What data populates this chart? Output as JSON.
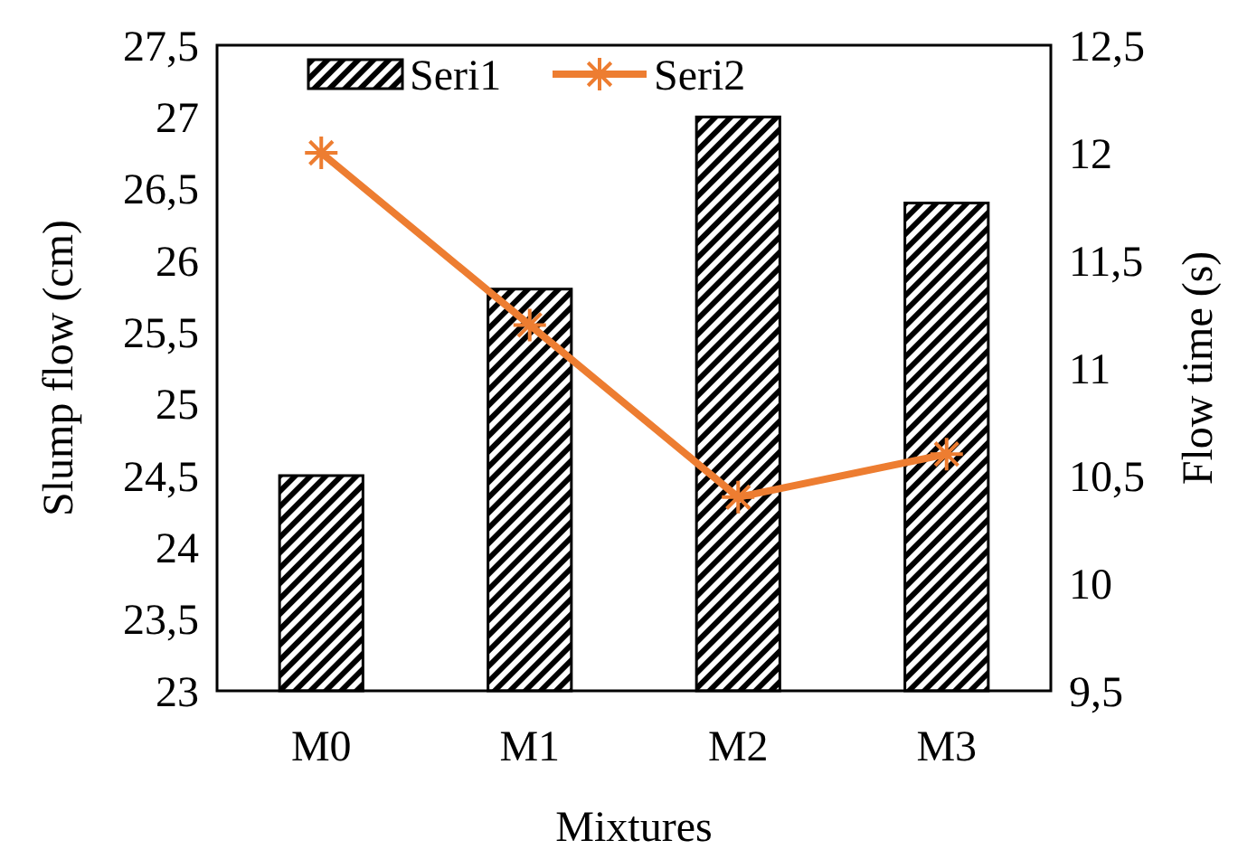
{
  "chart_data": {
    "type": "bar",
    "xlabel": "Mixtures",
    "ylabel": "Slump flow (cm)",
    "y2label": "Flow time (s)",
    "categories": [
      "M0",
      "M1",
      "M2",
      "M3"
    ],
    "series": [
      {
        "name": "Seri1",
        "color": "#000000",
        "values": [
          24.5,
          25.8,
          27.0,
          26.4
        ]
      },
      {
        "name": "Seri2",
        "type": "line",
        "axis": "y2",
        "color": "#ed7d31",
        "marker": "cross",
        "values": [
          12.0,
          11.2,
          10.4,
          10.6
        ]
      }
    ],
    "ylim": [
      23,
      27.5
    ],
    "yticks": [
      23,
      {
        "value": 23.5,
        "label": "23,5"
      },
      24,
      {
        "value": 24.5,
        "label": "24,5"
      },
      25,
      {
        "value": 25.5,
        "label": "25,5"
      },
      26,
      {
        "value": 26.5,
        "label": "26,5"
      },
      27,
      {
        "value": 27.5,
        "label": "27,5"
      }
    ],
    "y2lim": [
      9.5,
      12.5
    ],
    "y2ticks": [
      {
        "value": 9.5,
        "label": "9,5"
      },
      10,
      {
        "value": 10.5,
        "label": "10,5"
      },
      11,
      {
        "value": 11.5,
        "label": "11,5"
      },
      12,
      {
        "value": 12.5,
        "label": "12,5"
      }
    ],
    "legend": "top",
    "grid": false
  }
}
